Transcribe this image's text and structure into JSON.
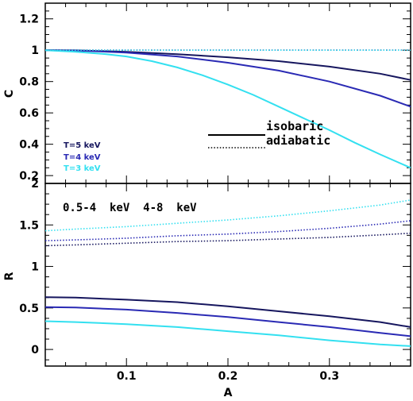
{
  "chart_data": [
    {
      "type": "line",
      "panel": "top",
      "xlabel": "",
      "ylabel": "C",
      "xlim": [
        0.02,
        0.38
      ],
      "ylim": [
        0.15,
        1.3
      ],
      "yticks": [
        0.2,
        0.4,
        0.6,
        0.8,
        1.0,
        1.2
      ],
      "ytick_labels": [
        "0.2",
        "0.4",
        "0.6",
        "0.8",
        "1",
        "1.2"
      ],
      "line_styles": [
        {
          "label": "isobaric",
          "dash": "solid"
        },
        {
          "label": "adiabatic",
          "dash": "dotted"
        }
      ],
      "temperatures": [
        {
          "label": "T=5 keV",
          "color": "#16165e"
        },
        {
          "label": "T=4 keV",
          "color": "#2a2ab4"
        },
        {
          "label": "T=3 keV",
          "color": "#33e0f0"
        }
      ],
      "series": [
        {
          "temp": 0,
          "style": "solid",
          "color": "#16165e",
          "x": [
            0.02,
            0.05,
            0.1,
            0.15,
            0.2,
            0.25,
            0.3,
            0.35,
            0.38
          ],
          "y": [
            1.0,
            0.999,
            0.99,
            0.975,
            0.955,
            0.93,
            0.895,
            0.85,
            0.81
          ]
        },
        {
          "temp": 1,
          "style": "solid",
          "color": "#2a2ab4",
          "x": [
            0.02,
            0.05,
            0.1,
            0.15,
            0.2,
            0.25,
            0.3,
            0.35,
            0.38
          ],
          "y": [
            1.0,
            0.998,
            0.985,
            0.96,
            0.92,
            0.87,
            0.8,
            0.71,
            0.64
          ]
        },
        {
          "temp": 2,
          "style": "solid",
          "color": "#33e0f0",
          "x": [
            0.02,
            0.05,
            0.08,
            0.1,
            0.125,
            0.15,
            0.175,
            0.2,
            0.225,
            0.25,
            0.275,
            0.3,
            0.325,
            0.35,
            0.38
          ],
          "y": [
            1.0,
            0.99,
            0.975,
            0.96,
            0.93,
            0.89,
            0.84,
            0.78,
            0.715,
            0.64,
            0.565,
            0.49,
            0.41,
            0.335,
            0.25
          ]
        },
        {
          "temp": 0,
          "style": "dotted",
          "color": "#16165e",
          "x": [
            0.02,
            0.38
          ],
          "y": [
            1.0,
            1.0
          ]
        },
        {
          "temp": 1,
          "style": "dotted",
          "color": "#2a2ab4",
          "x": [
            0.02,
            0.38
          ],
          "y": [
            1.0,
            1.0
          ]
        },
        {
          "temp": 2,
          "style": "dotted",
          "color": "#33e0f0",
          "x": [
            0.02,
            0.38
          ],
          "y": [
            1.0,
            1.0
          ]
        }
      ]
    },
    {
      "type": "line",
      "panel": "bottom",
      "xlabel": "A",
      "ylabel": "R",
      "xlim": [
        0.02,
        0.38
      ],
      "ylim": [
        -0.2,
        2.0
      ],
      "xticks": [
        0.1,
        0.2,
        0.3
      ],
      "xtick_labels": [
        "0.1",
        "0.2",
        "0.3"
      ],
      "yticks": [
        0,
        0.5,
        1.0,
        1.5,
        2.0
      ],
      "ytick_labels": [
        "0",
        "0.5",
        "1",
        "1.5",
        "2"
      ],
      "bands": "0.5-4  keV  4-8  keV",
      "series": [
        {
          "temp": 0,
          "style": "solid",
          "color": "#16165e",
          "x": [
            0.02,
            0.05,
            0.1,
            0.15,
            0.2,
            0.25,
            0.3,
            0.35,
            0.38
          ],
          "y": [
            0.63,
            0.625,
            0.6,
            0.57,
            0.52,
            0.46,
            0.4,
            0.33,
            0.27
          ]
        },
        {
          "temp": 1,
          "style": "solid",
          "color": "#2a2ab4",
          "x": [
            0.02,
            0.05,
            0.1,
            0.15,
            0.2,
            0.25,
            0.3,
            0.35,
            0.38
          ],
          "y": [
            0.51,
            0.505,
            0.48,
            0.44,
            0.39,
            0.33,
            0.27,
            0.2,
            0.16
          ]
        },
        {
          "temp": 2,
          "style": "solid",
          "color": "#33e0f0",
          "x": [
            0.02,
            0.05,
            0.1,
            0.15,
            0.2,
            0.25,
            0.3,
            0.35,
            0.38
          ],
          "y": [
            0.34,
            0.33,
            0.305,
            0.27,
            0.22,
            0.17,
            0.11,
            0.06,
            0.04
          ]
        },
        {
          "temp": 0,
          "style": "dotted",
          "color": "#16165e",
          "x": [
            0.02,
            0.05,
            0.1,
            0.15,
            0.2,
            0.25,
            0.3,
            0.35,
            0.38
          ],
          "y": [
            1.25,
            1.26,
            1.28,
            1.3,
            1.31,
            1.33,
            1.35,
            1.38,
            1.4
          ]
        },
        {
          "temp": 1,
          "style": "dotted",
          "color": "#2a2ab4",
          "x": [
            0.02,
            0.05,
            0.1,
            0.15,
            0.2,
            0.25,
            0.3,
            0.35,
            0.38
          ],
          "y": [
            1.31,
            1.32,
            1.34,
            1.37,
            1.39,
            1.42,
            1.46,
            1.51,
            1.55
          ]
        },
        {
          "temp": 2,
          "style": "dotted",
          "color": "#33e0f0",
          "x": [
            0.02,
            0.05,
            0.1,
            0.15,
            0.2,
            0.25,
            0.3,
            0.35,
            0.38
          ],
          "y": [
            1.43,
            1.45,
            1.48,
            1.52,
            1.56,
            1.61,
            1.67,
            1.74,
            1.8
          ]
        }
      ]
    }
  ]
}
